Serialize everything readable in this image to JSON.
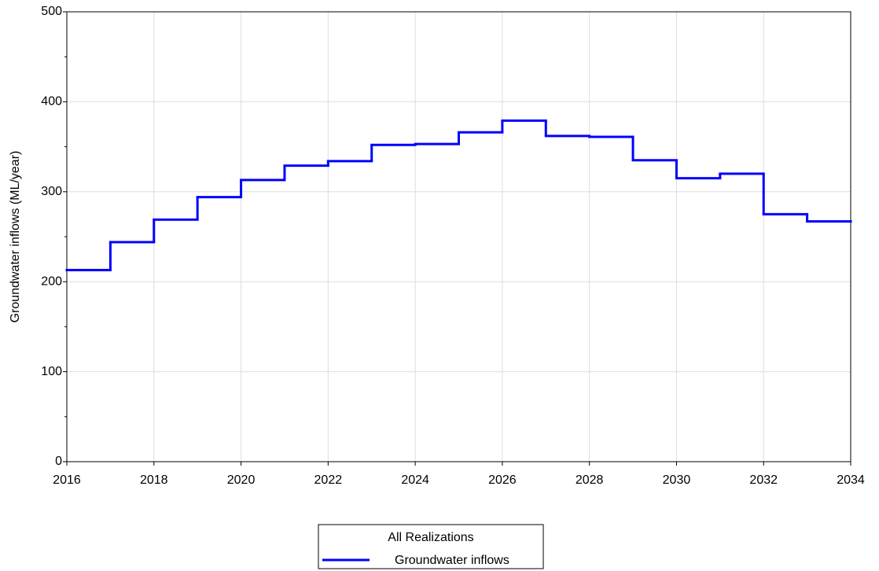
{
  "chart_data": {
    "type": "step",
    "ylabel": "Groundwater inflows (ML/year)",
    "x": [
      2016,
      2017,
      2018,
      2019,
      2020,
      2021,
      2022,
      2023,
      2024,
      2025,
      2026,
      2027,
      2028,
      2029,
      2030,
      2031,
      2032,
      2033
    ],
    "series": [
      {
        "name": "Groundwater inflows",
        "color": "#0000ff",
        "values": [
          213,
          244,
          269,
          294,
          313,
          329,
          334,
          352,
          353,
          366,
          379,
          362,
          361,
          335,
          315,
          320,
          275,
          267
        ]
      }
    ],
    "xlim": [
      2016,
      2034
    ],
    "xticks": [
      2016,
      2018,
      2020,
      2022,
      2024,
      2026,
      2028,
      2030,
      2032,
      2034
    ],
    "ylim": [
      0,
      500
    ],
    "yticks": [
      0,
      100,
      200,
      300,
      400,
      500
    ],
    "grid": true,
    "legend_title": "All Realizations",
    "legend": "bottom"
  }
}
